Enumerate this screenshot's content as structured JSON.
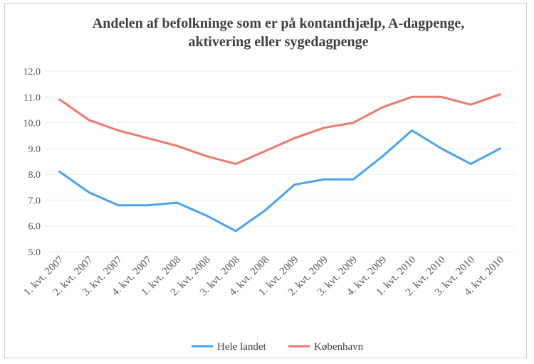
{
  "chart_data": {
    "type": "line",
    "title_lines": [
      "Andelen af befolkninge som er på kontanthjælp, A-dagpenge,",
      "aktivering eller sygedagpenge"
    ],
    "categories": [
      "1. kvt. 2007",
      "2. kvt. 2007",
      "3. kvt. 2007",
      "4. kvt. 2007",
      "1. kvt. 2008",
      "2. kvt. 2008",
      "3. kvt. 2008",
      "4. kvt. 2008",
      "1. kvt. 2009",
      "2. kvt. 2009",
      "3. kvt. 2009",
      "4. kvt. 2009",
      "1. kvt. 2010",
      "2. kvt. 2010",
      "3. kvt. 2010",
      "4. kvt. 2010"
    ],
    "series": [
      {
        "name": "Hele landet",
        "color": "#4aa3f0",
        "values": [
          8.1,
          7.3,
          6.8,
          6.8,
          6.9,
          6.4,
          5.8,
          6.6,
          7.6,
          7.8,
          7.8,
          8.7,
          9.7,
          9.0,
          8.4,
          9.0
        ]
      },
      {
        "name": "København",
        "color": "#f0786e",
        "values": [
          10.9,
          10.1,
          9.7,
          9.4,
          9.1,
          8.7,
          8.4,
          8.9,
          9.4,
          9.8,
          10.0,
          10.6,
          11.0,
          11.0,
          10.7,
          11.1
        ]
      }
    ],
    "ylim": [
      5.0,
      12.0
    ],
    "yticks": [
      "5.0",
      "6.0",
      "7.0",
      "8.0",
      "9.0",
      "10.0",
      "11.0",
      "12.0"
    ],
    "grid": true,
    "legend_position": "bottom",
    "xlabel": "",
    "ylabel": ""
  }
}
